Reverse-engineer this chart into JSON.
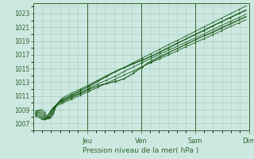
{
  "title": "Pression niveau de la mer( hPa )",
  "ylabel_values": [
    1007,
    1009,
    1011,
    1013,
    1015,
    1017,
    1019,
    1021,
    1023
  ],
  "ylim": [
    1006.0,
    1024.5
  ],
  "xlim": [
    0.0,
    4.0
  ],
  "x_ticks": [
    1,
    2,
    3,
    4
  ],
  "x_tick_labels": [
    "Jeu",
    "Ven",
    "Sam",
    "Dim"
  ],
  "background_color": "#cce8e0",
  "grid_color": "#aaccc4",
  "line_color": "#1a5c1a",
  "axis_color": "#336633",
  "label_color": "#336633",
  "figsize": [
    3.2,
    2.0
  ],
  "dpi": 100
}
